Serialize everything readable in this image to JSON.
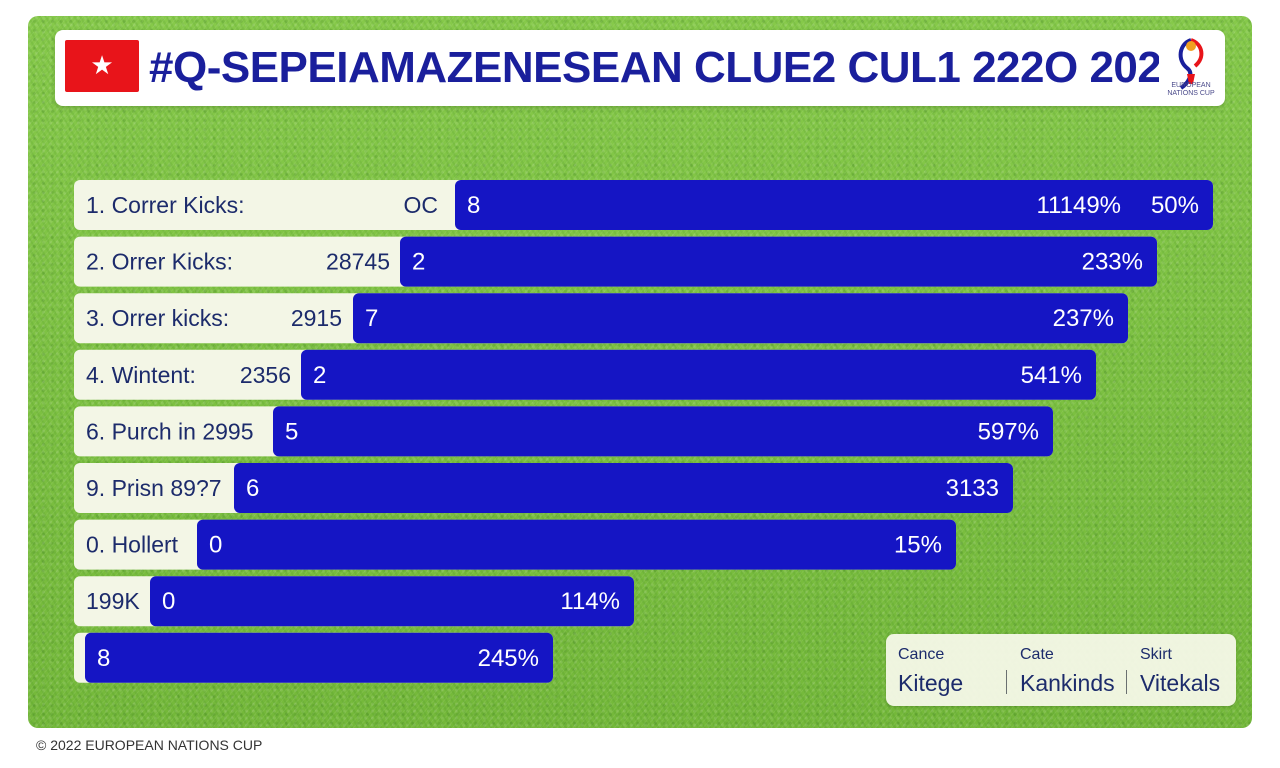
{
  "header": {
    "title": "#Q-SEPEIAMAZENESEAN CLUE2 CUL1 222O  202",
    "flag_symbol": "★",
    "emblem_caption": "EUROPEAN NATIONS CUP"
  },
  "chart_data": {
    "type": "bar",
    "orientation": "horizontal",
    "rows": [
      {
        "label": "1. Correr Kicks:",
        "left_value": "OC",
        "value": 8,
        "right_text": "11149%",
        "extra_text": "50%"
      },
      {
        "label": "2. Orrer Kicks:",
        "left_value": "28745",
        "value": 2,
        "right_text": "233%"
      },
      {
        "label": "3. Orrer kicks:",
        "left_value": "2915",
        "value": 7,
        "right_text": "237%"
      },
      {
        "label": "4. Wintent:",
        "left_value": "2356",
        "value": 2,
        "right_text": "541%"
      },
      {
        "label": "6. Purch in 2995",
        "left_value": "",
        "value": 5,
        "right_text": "597%"
      },
      {
        "label": "9. Prisn 89?7",
        "left_value": "",
        "value": 6,
        "right_text": "3133"
      },
      {
        "label": "0. Hollert",
        "left_value": "",
        "value": 0,
        "right_text": "15%"
      },
      {
        "label": "199K",
        "left_value": "",
        "value": 0,
        "right_text": "114%"
      },
      {
        "label": "",
        "left_value": "",
        "value": 8,
        "right_text": "245%"
      }
    ],
    "bar_color": "#1515c4",
    "label_panel_color": "#f3f6e6",
    "text_color": "#1c2b6b"
  },
  "legend": {
    "columns": [
      {
        "header": "Cance",
        "value": "Kitege"
      },
      {
        "header": "Cate",
        "value": "Kankinds"
      },
      {
        "header": "Skirt",
        "value": "Vitekals"
      }
    ]
  },
  "footer": {
    "text": "© 2022 EUROPEAN NATIONS CUP"
  }
}
